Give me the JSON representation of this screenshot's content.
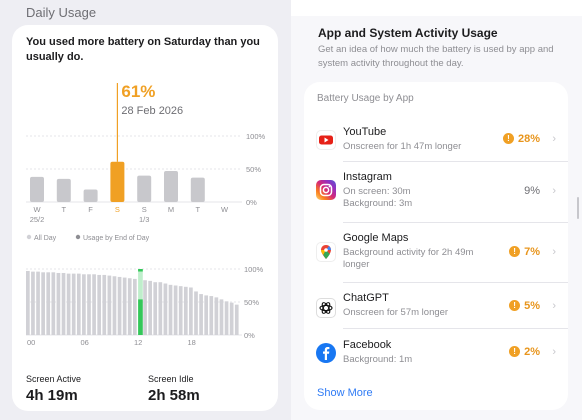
{
  "left": {
    "section_title": "Daily Usage",
    "headline": "You used more battery on Saturday than you usually do.",
    "highlight": {
      "percent": "61%",
      "date": "28 Feb 2026"
    },
    "daily_chart": {
      "type": "bar",
      "categories": [
        "W",
        "T",
        "F",
        "S",
        "S",
        "M",
        "T",
        "W"
      ],
      "sublabels": [
        "25/2",
        "",
        "",
        "",
        "1/3",
        "",
        "",
        ""
      ],
      "values": [
        38,
        35,
        19,
        61,
        40,
        47,
        37,
        0
      ],
      "highlight_index": 3,
      "y_ticks": [
        "100%",
        "50%",
        "0%"
      ],
      "ylim": [
        0,
        100
      ]
    },
    "legend": {
      "all_day": "All Day",
      "usage_by_end": "Usage by End of Day"
    },
    "level_chart": {
      "type": "bar",
      "values": [
        97,
        96,
        96,
        95,
        95,
        95,
        94,
        94,
        93,
        93,
        93,
        92,
        92,
        92,
        91,
        91,
        90,
        89,
        88,
        87,
        86,
        85,
        84,
        83,
        82,
        80,
        80,
        78,
        76,
        75,
        74,
        73,
        72,
        66,
        62,
        60,
        59,
        57,
        54,
        51,
        49,
        46
      ],
      "charge_index": 22,
      "charge_from": 54,
      "charge_to": 100,
      "x_ticks": [
        "00",
        "06",
        "12",
        "18"
      ],
      "y_ticks": [
        "100%",
        "50%",
        "0%"
      ],
      "ylim": [
        0,
        100
      ]
    },
    "stats": {
      "screen_active_label": "Screen Active",
      "screen_active_value": "4h 19m",
      "screen_idle_label": "Screen Idle",
      "screen_idle_value": "2h 58m"
    }
  },
  "right": {
    "title": "App and System Activity Usage",
    "subtitle": "Get an idea of how much the battery is used by app and system activity throughout the day.",
    "list_header": "Battery Usage by App",
    "apps": [
      {
        "name": "YouTube",
        "desc": "Onscreen for 1h 47m longer",
        "percent": "28%",
        "warning": true,
        "icon": "youtube-icon",
        "color": "#e62117"
      },
      {
        "name": "Instagram",
        "desc": "On screen: 30m\nBackground: 3m",
        "percent": "9%",
        "warning": false,
        "icon": "instagram-icon",
        "color": "#d62976"
      },
      {
        "name": "Google Maps",
        "desc": "Background activity for 2h 49m longer",
        "percent": "7%",
        "warning": true,
        "icon": "google-maps-icon",
        "color": "#34a853"
      },
      {
        "name": "ChatGPT",
        "desc": "Onscreen for 57m longer",
        "percent": "5%",
        "warning": true,
        "icon": "chatgpt-icon",
        "color": "#000000"
      },
      {
        "name": "Facebook",
        "desc": "Background: 1m",
        "percent": "2%",
        "warning": true,
        "icon": "facebook-icon",
        "color": "#1877f2"
      }
    ],
    "show_more": "Show More"
  },
  "colors": {
    "accent": "#f0a024",
    "charging": "#34c759",
    "bar": "#c8c8cc",
    "link": "#2f7bf5"
  }
}
